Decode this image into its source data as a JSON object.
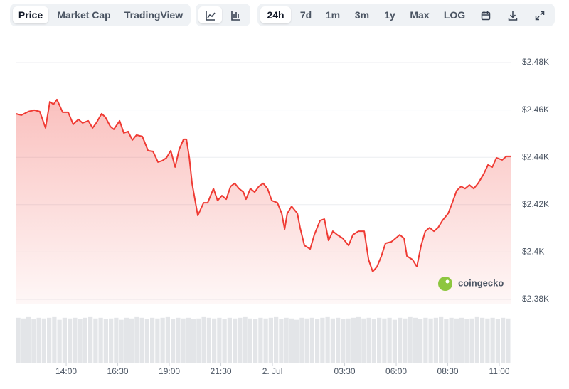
{
  "toolbar": {
    "views": [
      "Price",
      "Market Cap",
      "TradingView"
    ],
    "ranges": [
      "24h",
      "7d",
      "1m",
      "3m",
      "1y",
      "Max",
      "LOG"
    ]
  },
  "chart_data": {
    "type": "line",
    "color": "#ef3b34",
    "watermark": "coingecko",
    "x": [
      11.55,
      11.83,
      12.17,
      12.45,
      12.72,
      13.0,
      13.21,
      13.38,
      13.55,
      13.83,
      14.1,
      14.34,
      14.59,
      14.79,
      15.07,
      15.28,
      15.48,
      15.72,
      15.9,
      16.14,
      16.31,
      16.59,
      16.79,
      17.0,
      17.21,
      17.41,
      17.69,
      17.97,
      18.21,
      18.45,
      18.66,
      18.86,
      19.07,
      19.28,
      19.48,
      19.69,
      19.83,
      19.97,
      20.1,
      20.38,
      20.66,
      20.86,
      21.14,
      21.34,
      21.55,
      21.76,
      21.97,
      22.17,
      22.38,
      22.59,
      22.72,
      22.93,
      23.14,
      23.34,
      23.55,
      23.76,
      23.97,
      24.24,
      24.45,
      24.59,
      24.72,
      24.93,
      25.21,
      25.34,
      25.55,
      25.83,
      26.03,
      26.31,
      26.52,
      26.72,
      26.93,
      27.14,
      27.41,
      27.69,
      27.9,
      28.17,
      28.45,
      28.66,
      28.86,
      29.07,
      29.28,
      29.48,
      29.76,
      29.97,
      30.17,
      30.38,
      30.52,
      30.79,
      31.0,
      31.21,
      31.41,
      31.62,
      31.83,
      32.03,
      32.24,
      32.52,
      32.72,
      32.93,
      33.14,
      33.34,
      33.55,
      33.76,
      33.97,
      34.24,
      34.45,
      34.66,
      34.86,
      35.14,
      35.34,
      35.55
    ],
    "values": [
      2458.4,
      2457.8,
      2459.3,
      2459.9,
      2459.3,
      2452.4,
      2463.5,
      2462.3,
      2464.4,
      2459.0,
      2459.0,
      2453.9,
      2456.0,
      2454.5,
      2455.4,
      2452.4,
      2454.8,
      2458.4,
      2456.9,
      2453.0,
      2451.8,
      2455.4,
      2450.3,
      2450.9,
      2447.3,
      2449.4,
      2448.8,
      2442.8,
      2442.5,
      2438.0,
      2438.6,
      2439.8,
      2442.8,
      2435.9,
      2443.4,
      2447.6,
      2447.6,
      2439.8,
      2429.0,
      2415.4,
      2420.8,
      2420.8,
      2426.8,
      2421.7,
      2423.8,
      2422.3,
      2427.7,
      2429.0,
      2426.8,
      2425.3,
      2422.3,
      2426.8,
      2425.3,
      2427.7,
      2429.0,
      2426.8,
      2421.7,
      2420.8,
      2416.3,
      2409.7,
      2416.3,
      2419.3,
      2416.3,
      2410.3,
      2402.8,
      2401.3,
      2407.3,
      2413.3,
      2413.9,
      2404.9,
      2408.8,
      2407.3,
      2405.8,
      2402.8,
      2407.3,
      2408.8,
      2408.8,
      2396.8,
      2391.7,
      2393.8,
      2398.3,
      2403.7,
      2404.3,
      2405.8,
      2407.3,
      2405.8,
      2398.3,
      2396.8,
      2393.8,
      2402.8,
      2408.8,
      2410.3,
      2408.8,
      2410.3,
      2413.3,
      2416.3,
      2420.8,
      2425.9,
      2427.7,
      2426.8,
      2428.3,
      2426.8,
      2429.0,
      2432.9,
      2436.8,
      2435.9,
      2439.8,
      2438.9,
      2440.4,
      2440.4
    ],
    "xlim": [
      11.55,
      35.55
    ],
    "xticks": [
      {
        "value": 14,
        "label": "14:00"
      },
      {
        "value": 16.5,
        "label": "16:30"
      },
      {
        "value": 19,
        "label": "19:00"
      },
      {
        "value": 21.5,
        "label": "21:30"
      },
      {
        "value": 24,
        "label": "2. Jul"
      },
      {
        "value": 27.5,
        "label": "03:30"
      },
      {
        "value": 30,
        "label": "06:00"
      },
      {
        "value": 32.5,
        "label": "08:30"
      },
      {
        "value": 35,
        "label": "11:00"
      }
    ],
    "ylim": [
      2380,
      2480
    ],
    "yticks": [
      {
        "value": 2380,
        "label": "$2.38K"
      },
      {
        "value": 2400,
        "label": "$2.4K"
      },
      {
        "value": 2420,
        "label": "$2.42K"
      },
      {
        "value": 2440,
        "label": "$2.44K"
      },
      {
        "value": 2460,
        "label": "$2.46K"
      },
      {
        "value": 2480,
        "label": "$2.48K"
      }
    ],
    "grid": true,
    "volume": {
      "color": "#e3e5e8",
      "ylim": [
        0,
        70
      ],
      "values": [
        66,
        65,
        67,
        64,
        66,
        65,
        66,
        67,
        63,
        66,
        65,
        66,
        64,
        66,
        67,
        65,
        66,
        64,
        65,
        66,
        63,
        66,
        65,
        67,
        66,
        64,
        66,
        65,
        66,
        67,
        64,
        66,
        65,
        66,
        64,
        65,
        67,
        66,
        65,
        66,
        64,
        66,
        65,
        66,
        67,
        65,
        64,
        66,
        65,
        66,
        67,
        64,
        66,
        65,
        63,
        66,
        65,
        66,
        64,
        66,
        67,
        65,
        66,
        64,
        65,
        66,
        67,
        65,
        66,
        64,
        66,
        65,
        66,
        63,
        66,
        65,
        67,
        66,
        64,
        66,
        65,
        66,
        67,
        64,
        66,
        65,
        66,
        64,
        65,
        67,
        66,
        65,
        66,
        64,
        66,
        65
      ]
    }
  }
}
